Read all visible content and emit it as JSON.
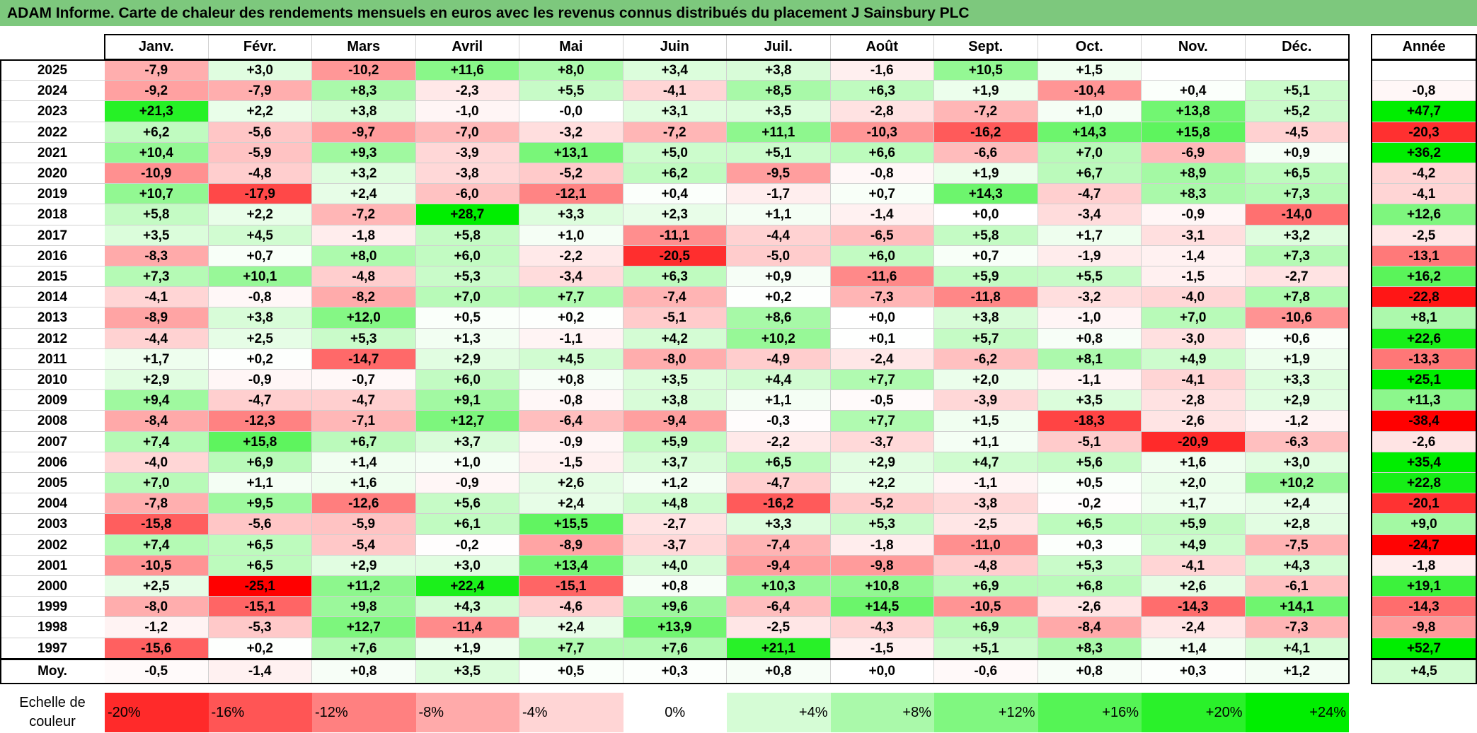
{
  "title": "ADAM Informe. Carte de chaleur des rendements mensuels en euros avec les revenus connus distribués du placement J Sainsbury PLC",
  "chart_data": {
    "type": "heatmap",
    "title": "ADAM Informe. Carte de chaleur des rendements mensuels en euros avec les revenus connus distribués du placement J Sainsbury PLC",
    "months": [
      "Janv.",
      "Févr.",
      "Mars",
      "Avril",
      "Mai",
      "Juin",
      "Juil.",
      "Août",
      "Sept.",
      "Oct.",
      "Nov.",
      "Déc."
    ],
    "year_header": "Année",
    "rows": [
      {
        "year": "2025",
        "values": [
          "-7,9",
          "+3,0",
          "-10,2",
          "+11,6",
          "+8,0",
          "+3,4",
          "+3,8",
          "-1,6",
          "+10,5",
          "+1,5",
          "",
          ""
        ],
        "annual": ""
      },
      {
        "year": "2024",
        "values": [
          "-9,2",
          "-7,9",
          "+8,3",
          "-2,3",
          "+5,5",
          "-4,1",
          "+8,5",
          "+6,3",
          "+1,9",
          "-10,4",
          "+0,4",
          "+5,1"
        ],
        "annual": "-0,8"
      },
      {
        "year": "2023",
        "values": [
          "+21,3",
          "+2,2",
          "+3,8",
          "-1,0",
          "-0,0",
          "+3,1",
          "+3,5",
          "-2,8",
          "-7,2",
          "+1,0",
          "+13,8",
          "+5,2"
        ],
        "annual": "+47,7"
      },
      {
        "year": "2022",
        "values": [
          "+6,2",
          "-5,6",
          "-9,7",
          "-7,0",
          "-3,2",
          "-7,2",
          "+11,1",
          "-10,3",
          "-16,2",
          "+14,3",
          "+15,8",
          "-4,5"
        ],
        "annual": "-20,3"
      },
      {
        "year": "2021",
        "values": [
          "+10,4",
          "-5,9",
          "+9,3",
          "-3,9",
          "+13,1",
          "+5,0",
          "+5,1",
          "+6,6",
          "-6,6",
          "+7,0",
          "-6,9",
          "+0,9"
        ],
        "annual": "+36,2"
      },
      {
        "year": "2020",
        "values": [
          "-10,9",
          "-4,8",
          "+3,2",
          "-3,8",
          "-5,2",
          "+6,2",
          "-9,5",
          "-0,8",
          "+1,9",
          "+6,7",
          "+8,9",
          "+6,5"
        ],
        "annual": "-4,2"
      },
      {
        "year": "2019",
        "values": [
          "+10,7",
          "-17,9",
          "+2,4",
          "-6,0",
          "-12,1",
          "+0,4",
          "-1,7",
          "+0,7",
          "+14,3",
          "-4,7",
          "+8,3",
          "+7,3"
        ],
        "annual": "-4,1"
      },
      {
        "year": "2018",
        "values": [
          "+5,8",
          "+2,2",
          "-7,2",
          "+28,7",
          "+3,3",
          "+2,3",
          "+1,1",
          "-1,4",
          "+0,0",
          "-3,4",
          "-0,9",
          "-14,0"
        ],
        "annual": "+12,6"
      },
      {
        "year": "2017",
        "values": [
          "+3,5",
          "+4,5",
          "-1,8",
          "+5,8",
          "+1,0",
          "-11,1",
          "-4,4",
          "-6,5",
          "+5,8",
          "+1,7",
          "-3,1",
          "+3,2"
        ],
        "annual": "-2,5"
      },
      {
        "year": "2016",
        "values": [
          "-8,3",
          "+0,7",
          "+8,0",
          "+6,0",
          "-2,2",
          "-20,5",
          "-5,0",
          "+6,0",
          "+0,7",
          "-1,9",
          "-1,4",
          "+7,3"
        ],
        "annual": "-13,1"
      },
      {
        "year": "2015",
        "values": [
          "+7,3",
          "+10,1",
          "-4,8",
          "+5,3",
          "-3,4",
          "+6,3",
          "+0,9",
          "-11,6",
          "+5,9",
          "+5,5",
          "-1,5",
          "-2,7"
        ],
        "annual": "+16,2"
      },
      {
        "year": "2014",
        "values": [
          "-4,1",
          "-0,8",
          "-8,2",
          "+7,0",
          "+7,7",
          "-7,4",
          "+0,2",
          "-7,3",
          "-11,8",
          "-3,2",
          "-4,0",
          "+7,8"
        ],
        "annual": "-22,8"
      },
      {
        "year": "2013",
        "values": [
          "-8,9",
          "+3,8",
          "+12,0",
          "+0,5",
          "+0,2",
          "-5,1",
          "+8,6",
          "+0,0",
          "+3,8",
          "-1,0",
          "+7,0",
          "-10,6"
        ],
        "annual": "+8,1"
      },
      {
        "year": "2012",
        "values": [
          "-4,4",
          "+2,5",
          "+5,3",
          "+1,3",
          "-1,1",
          "+4,2",
          "+10,2",
          "+0,1",
          "+5,7",
          "+0,8",
          "-3,0",
          "+0,6"
        ],
        "annual": "+22,6"
      },
      {
        "year": "2011",
        "values": [
          "+1,7",
          "+0,2",
          "-14,7",
          "+2,9",
          "+4,5",
          "-8,0",
          "-4,9",
          "-2,4",
          "-6,2",
          "+8,1",
          "+4,9",
          "+1,9"
        ],
        "annual": "-13,3"
      },
      {
        "year": "2010",
        "values": [
          "+2,9",
          "-0,9",
          "-0,7",
          "+6,0",
          "+0,8",
          "+3,5",
          "+4,4",
          "+7,7",
          "+2,0",
          "-1,1",
          "-4,1",
          "+3,3"
        ],
        "annual": "+25,1"
      },
      {
        "year": "2009",
        "values": [
          "+9,4",
          "-4,7",
          "-4,7",
          "+9,1",
          "-0,8",
          "+3,8",
          "+1,1",
          "-0,5",
          "-3,9",
          "+3,5",
          "-2,8",
          "+2,9"
        ],
        "annual": "+11,3"
      },
      {
        "year": "2008",
        "values": [
          "-8,4",
          "-12,3",
          "-7,1",
          "+12,7",
          "-6,4",
          "-9,4",
          "-0,3",
          "+7,7",
          "+1,5",
          "-18,3",
          "-2,6",
          "-1,2"
        ],
        "annual": "-38,4"
      },
      {
        "year": "2007",
        "values": [
          "+7,4",
          "+15,8",
          "+6,7",
          "+3,7",
          "-0,9",
          "+5,9",
          "-2,2",
          "-3,7",
          "+1,1",
          "-5,1",
          "-20,9",
          "-6,3"
        ],
        "annual": "-2,6"
      },
      {
        "year": "2006",
        "values": [
          "-4,0",
          "+6,9",
          "+1,4",
          "+1,0",
          "-1,5",
          "+3,7",
          "+6,5",
          "+2,9",
          "+4,7",
          "+5,6",
          "+1,6",
          "+3,0"
        ],
        "annual": "+35,4"
      },
      {
        "year": "2005",
        "values": [
          "+7,0",
          "+1,1",
          "+1,6",
          "-0,9",
          "+2,6",
          "+1,2",
          "-4,7",
          "+2,2",
          "-1,1",
          "+0,5",
          "+2,0",
          "+10,2"
        ],
        "annual": "+22,8"
      },
      {
        "year": "2004",
        "values": [
          "-7,8",
          "+9,5",
          "-12,6",
          "+5,6",
          "+2,4",
          "+4,8",
          "-16,2",
          "-5,2",
          "-3,8",
          "-0,2",
          "+1,7",
          "+2,4"
        ],
        "annual": "-20,1"
      },
      {
        "year": "2003",
        "values": [
          "-15,8",
          "-5,6",
          "-5,9",
          "+6,1",
          "+15,5",
          "-2,7",
          "+3,3",
          "+5,3",
          "-2,5",
          "+6,5",
          "+5,9",
          "+2,8"
        ],
        "annual": "+9,0"
      },
      {
        "year": "2002",
        "values": [
          "+7,4",
          "+6,5",
          "-5,4",
          "-0,2",
          "-8,9",
          "-3,7",
          "-7,4",
          "-1,8",
          "-11,0",
          "+0,3",
          "+4,9",
          "-7,5"
        ],
        "annual": "-24,7"
      },
      {
        "year": "2001",
        "values": [
          "-10,5",
          "+6,5",
          "+2,9",
          "+3,0",
          "+13,4",
          "+4,0",
          "-9,4",
          "-9,8",
          "-4,8",
          "+5,3",
          "-4,1",
          "+4,3"
        ],
        "annual": "-1,8"
      },
      {
        "year": "2000",
        "values": [
          "+2,5",
          "-25,1",
          "+11,2",
          "+22,4",
          "-15,1",
          "+0,8",
          "+10,3",
          "+10,8",
          "+6,9",
          "+6,8",
          "+2,6",
          "-6,1"
        ],
        "annual": "+19,1"
      },
      {
        "year": "1999",
        "values": [
          "-8,0",
          "-15,1",
          "+9,8",
          "+4,3",
          "-4,6",
          "+9,6",
          "-6,4",
          "+14,5",
          "-10,5",
          "-2,6",
          "-14,3",
          "+14,1"
        ],
        "annual": "-14,3"
      },
      {
        "year": "1998",
        "values": [
          "-1,2",
          "-5,3",
          "+12,7",
          "-11,4",
          "+2,4",
          "+13,9",
          "-2,5",
          "-4,3",
          "+6,9",
          "-8,4",
          "-2,4",
          "-7,3"
        ],
        "annual": "-9,8"
      },
      {
        "year": "1997",
        "values": [
          "-15,6",
          "+0,2",
          "+7,6",
          "+1,9",
          "+7,7",
          "+7,6",
          "+21,1",
          "-1,5",
          "+5,1",
          "+8,3",
          "+1,4",
          "+4,1"
        ],
        "annual": "+52,7"
      }
    ],
    "average": {
      "label": "Moy.",
      "values": [
        "-0,5",
        "-1,4",
        "+0,8",
        "+3,5",
        "+0,5",
        "+0,3",
        "+0,8",
        "+0,0",
        "-0,6",
        "+0,8",
        "+0,3",
        "+1,2"
      ],
      "annual": "+4,5"
    },
    "scale": {
      "label_line1": "Echelle de",
      "label_line2": "couleur",
      "steps": [
        {
          "label": "-20%",
          "value": -20,
          "align": "left"
        },
        {
          "label": "-16%",
          "value": -16,
          "align": "left"
        },
        {
          "label": "-12%",
          "value": -12,
          "align": "left"
        },
        {
          "label": "-8%",
          "value": -8,
          "align": "left"
        },
        {
          "label": "-4%",
          "value": -4,
          "align": "left"
        },
        {
          "label": "0%",
          "value": 0,
          "align": "center"
        },
        {
          "label": "+4%",
          "value": 4,
          "align": "right"
        },
        {
          "label": "+8%",
          "value": 8,
          "align": "right"
        },
        {
          "label": "+12%",
          "value": 12,
          "align": "right"
        },
        {
          "label": "+16%",
          "value": 16,
          "align": "right"
        },
        {
          "label": "+20%",
          "value": 20,
          "align": "right"
        },
        {
          "label": "+24%",
          "value": 24,
          "align": "right"
        }
      ]
    },
    "colors": {
      "negative": "#ff0000",
      "neutral": "#ffffff",
      "positive": "#00ee00",
      "title_bar": "#7dc87d"
    }
  }
}
